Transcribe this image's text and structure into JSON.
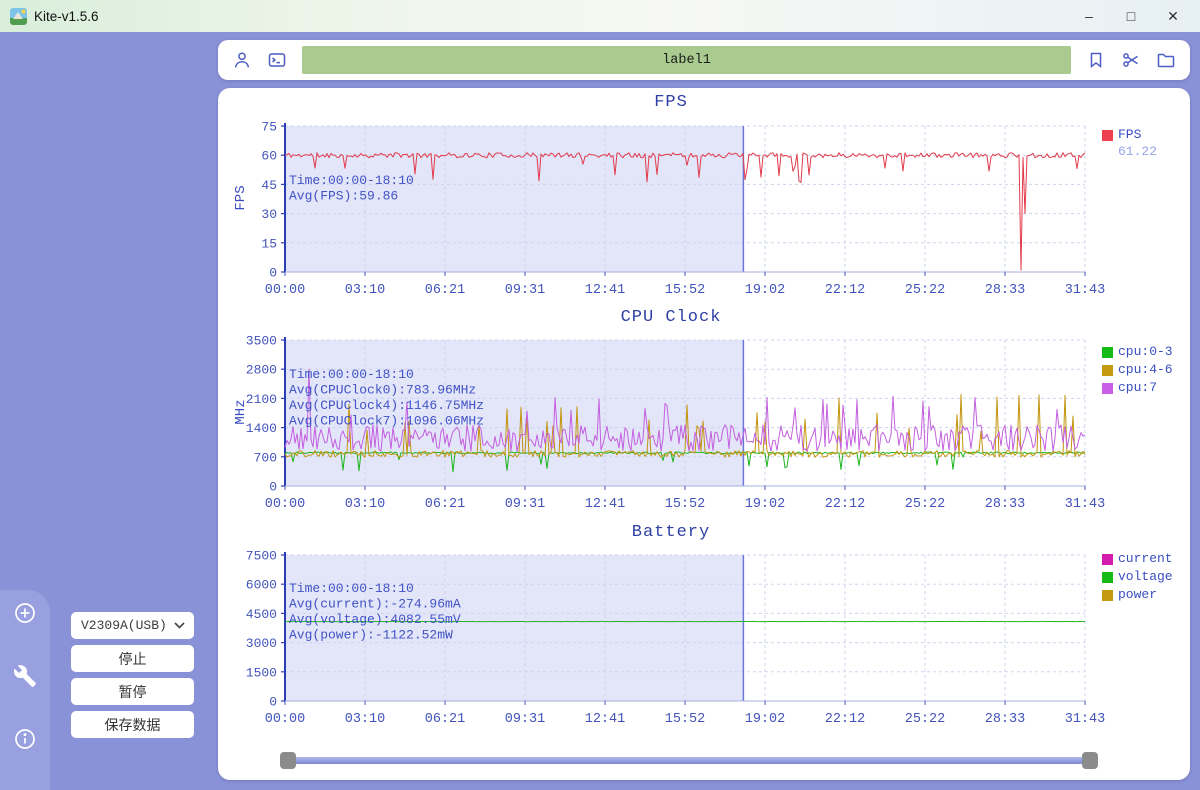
{
  "window": {
    "title": "Kite-v1.5.6",
    "minimize": "–",
    "maximize": "□",
    "close": "✕"
  },
  "toolbar": {
    "label_value": "label1"
  },
  "sidebar": {
    "device": "V2309A(USB)",
    "stop": "停止",
    "pause": "暂停",
    "save": "保存数据"
  },
  "colors": {
    "background_purple": "#8a92d7",
    "rail_purple": "#98a0e0",
    "label_green": "#a9cb8f",
    "axis_blue": "#4254bc",
    "title_blue": "#2e3fa4",
    "annotation_blue": "#4053c6",
    "region_lavender": "#e3e5f8",
    "fps_red": "#e23a4b",
    "cpu03_green": "#1cb51c",
    "cpu46_gold": "#c3940e",
    "cpu7_violet": "#c35fe0",
    "current_magenta": "#d41bae",
    "voltage_green": "#28b428",
    "power_gold": "#c49a10"
  },
  "chart_data": [
    {
      "type": "line",
      "title": "FPS",
      "ylabel": "FPS",
      "ylim": [
        0,
        75
      ],
      "yticks": [
        0,
        15,
        30,
        45,
        60,
        75
      ],
      "grid": true,
      "legend_position": "right",
      "xticks": [
        "00:00",
        "03:10",
        "06:21",
        "09:31",
        "12:41",
        "15:52",
        "19:02",
        "22:12",
        "25:22",
        "28:33",
        "31:43"
      ],
      "highlight": {
        "from": "00:00",
        "to": "18:10",
        "fraction": 0.573
      },
      "annotations": [
        "Time:00:00-18:10",
        "Avg(FPS):59.86"
      ],
      "annotation_y": 64,
      "legend": [
        {
          "label": "FPS",
          "color": "#ee4150",
          "value": "61.22"
        }
      ],
      "series": [
        {
          "name": "FPS",
          "color": "#e23a4b",
          "baseline": 60,
          "noise": 1.3,
          "dip_prob": 0.06,
          "dip_min": 46,
          "dip_max": 56,
          "events": [
            {
              "x": 0.919,
              "y": 12
            },
            {
              "x": 0.921,
              "y": 1
            },
            {
              "x": 0.924,
              "y": 30
            }
          ],
          "seed": 11
        }
      ]
    },
    {
      "type": "line",
      "title": "CPU Clock",
      "ylabel": "MHz",
      "ylim": [
        0,
        3500
      ],
      "yticks": [
        0,
        700,
        1400,
        2100,
        2800,
        3500
      ],
      "grid": true,
      "legend_position": "right",
      "xticks": [
        "00:00",
        "03:10",
        "06:21",
        "09:31",
        "12:41",
        "15:52",
        "19:02",
        "22:12",
        "25:22",
        "28:33",
        "31:43"
      ],
      "highlight": {
        "from": "00:00",
        "to": "18:10",
        "fraction": 0.573
      },
      "annotations": [
        "Time:00:00-18:10",
        "Avg(CPUClock0):783.96MHz",
        "Avg(CPUClock4):1146.75MHz",
        "Avg(CPUClock7):1096.06MHz"
      ],
      "annotation_y": 44,
      "legend": [
        {
          "label": "cpu:0-3",
          "color": "#17bb17"
        },
        {
          "label": "cpu:4-6",
          "color": "#c49a10"
        },
        {
          "label": "cpu:7",
          "color": "#c95fe6"
        }
      ],
      "series": [
        {
          "name": "cpu:0-3",
          "color": "#1cb51c",
          "baseline": 795,
          "noise": 20,
          "dip_prob": 0.04,
          "dip_min": 300,
          "dip_max": 700,
          "seed": 23
        },
        {
          "name": "cpu:4-6",
          "color": "#c3940e",
          "baseline": 770,
          "noise": 80,
          "spike_prob": 0.085,
          "spike_min": 1300,
          "spike_max": 2200,
          "floor": 600,
          "seed": 37
        },
        {
          "name": "cpu:7",
          "color": "#c35fe0",
          "baseline": 1150,
          "noise": 320,
          "spike_prob": 0.04,
          "spike_min": 1700,
          "spike_max": 2150,
          "floor": 770,
          "events": [
            {
              "x": 0.03,
              "y": 2800
            },
            {
              "x": 0.76,
              "y": 2150
            }
          ],
          "seed": 51
        }
      ]
    },
    {
      "type": "line",
      "title": "Battery",
      "ylabel": "",
      "ylim": [
        0,
        7500
      ],
      "yticks": [
        0,
        1500,
        3000,
        4500,
        6000,
        7500
      ],
      "grid": true,
      "legend_position": "right",
      "xticks": [
        "00:00",
        "03:10",
        "06:21",
        "09:31",
        "12:41",
        "15:52",
        "19:02",
        "22:12",
        "25:22",
        "28:33",
        "31:43"
      ],
      "highlight": {
        "from": "00:00",
        "to": "18:10",
        "fraction": 0.573
      },
      "annotations": [
        "Time:00:00-18:10",
        "Avg(current):-274.96mA",
        "Avg(voltage):4082.55mV",
        "Avg(power):-1122.52mW"
      ],
      "annotation_y": 43,
      "legend": [
        {
          "label": "current",
          "color": "#d41bae"
        },
        {
          "label": "voltage",
          "color": "#17bb17"
        },
        {
          "label": "power",
          "color": "#c49a10"
        }
      ],
      "series": [
        {
          "name": "voltage",
          "color": "#28b428",
          "baseline": 4082,
          "noise": 6,
          "seed": 77
        }
      ]
    }
  ]
}
